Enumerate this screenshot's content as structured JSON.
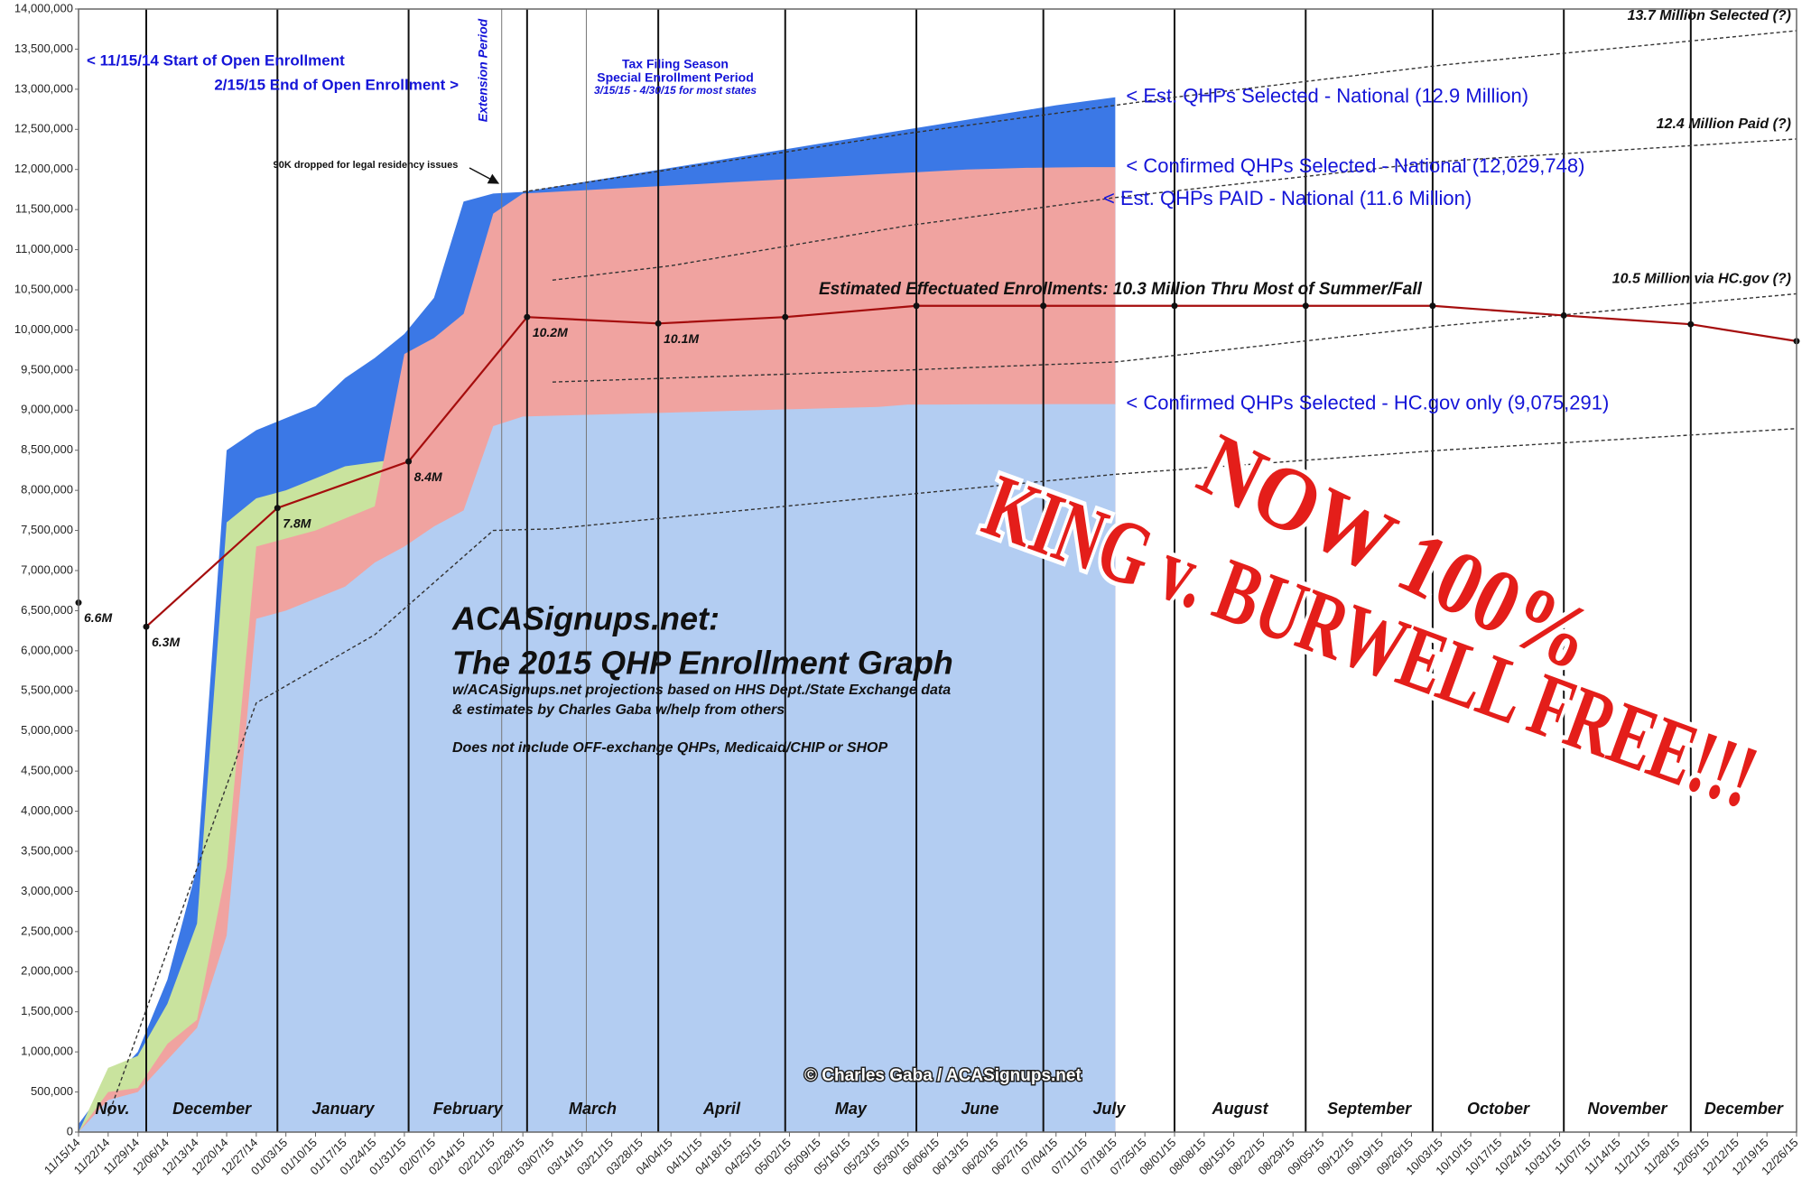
{
  "chart_data": {
    "type": "area",
    "stacked": false,
    "x": [
      "11/15/14",
      "11/22/14",
      "11/29/14",
      "12/06/14",
      "12/13/14",
      "12/20/14",
      "12/27/14",
      "01/03/15",
      "01/10/15",
      "01/17/15",
      "01/24/15",
      "01/31/15",
      "02/07/15",
      "02/14/15",
      "02/21/15",
      "02/28/15",
      "03/07/15",
      "03/14/15",
      "03/21/15",
      "03/28/15",
      "04/04/15",
      "04/11/15",
      "04/18/15",
      "04/25/15",
      "05/02/15",
      "05/09/15",
      "05/16/15",
      "05/23/15",
      "05/30/15",
      "06/06/15",
      "06/13/15",
      "06/20/15",
      "06/27/15",
      "07/04/15",
      "07/11/15",
      "07/18/15",
      "07/25/15",
      "08/01/15",
      "08/08/15",
      "08/15/15",
      "08/22/15",
      "08/29/15",
      "09/05/15",
      "09/12/15",
      "09/19/15",
      "09/26/15",
      "10/03/15",
      "10/10/15",
      "10/17/15",
      "10/24/15",
      "10/31/15",
      "11/07/15",
      "11/14/15",
      "11/21/15",
      "11/28/15",
      "12/05/15",
      "12/12/15",
      "12/19/15",
      "12/26/15"
    ],
    "xlim": [
      "11/15/14",
      "12/26/15"
    ],
    "ylim": [
      0,
      14000000
    ],
    "yticks": [
      0,
      {
        "value": 500000,
        "label": "500,000"
      },
      {
        "value": 1000000,
        "label": "1,000,000"
      },
      {
        "value": 1500000,
        "label": "1,500,000"
      },
      {
        "value": 2000000,
        "label": "2,000,000"
      },
      {
        "value": 2500000,
        "label": "2,500,000"
      },
      {
        "value": 3000000,
        "label": "3,000,000"
      },
      {
        "value": 3500000,
        "label": "3,500,000"
      },
      {
        "value": 4000000,
        "label": "4,000,000"
      },
      {
        "value": 4500000,
        "label": "4,500,000"
      },
      {
        "value": 5000000,
        "label": "5,000,000"
      },
      {
        "value": 5500000,
        "label": "5,500,000"
      },
      {
        "value": 6000000,
        "label": "6,000,000"
      },
      {
        "value": 6500000,
        "label": "6,500,000"
      },
      {
        "value": 7000000,
        "label": "7,000,000"
      },
      {
        "value": 7500000,
        "label": "7,500,000"
      },
      {
        "value": 8000000,
        "label": "8,000,000"
      },
      {
        "value": 8500000,
        "label": "8,500,000"
      },
      {
        "value": 9000000,
        "label": "9,000,000"
      },
      {
        "value": 9500000,
        "label": "9,500,000"
      },
      {
        "value": 10000000,
        "label": "10,000,000"
      },
      {
        "value": 10500000,
        "label": "10,500,000"
      },
      {
        "value": 11000000,
        "label": "11,000,000"
      },
      {
        "value": 11500000,
        "label": "11,500,000"
      },
      {
        "value": 12000000,
        "label": "12,000,000"
      },
      {
        "value": 12500000,
        "label": "12,500,000"
      },
      {
        "value": 13000000,
        "label": "13,000,000"
      },
      {
        "value": 13500000,
        "label": "13,500,000"
      },
      {
        "value": 14000000,
        "label": "14,000,000"
      }
    ],
    "grid": false,
    "month_lines": [
      "12/01/14",
      "01/01/15",
      "02/01/15",
      "03/01/15",
      "04/01/15",
      "05/01/15",
      "06/01/15",
      "07/01/15",
      "08/01/15",
      "09/01/15",
      "10/01/15",
      "11/01/15",
      "12/01/15"
    ],
    "event_lines": [
      "02/23/15",
      "03/15/15"
    ],
    "month_labels": [
      "Nov.",
      "December",
      "January",
      "February",
      "March",
      "April",
      "May",
      "June",
      "July",
      "August",
      "September",
      "October",
      "November",
      "December"
    ],
    "series": [
      {
        "name": "< Est. QHPs Selected - National (12.9 Million)",
        "style": "area",
        "color": "#3b78e6",
        "values": [
          100000,
          600000,
          1000000,
          1900000,
          3300000,
          8500000,
          8750000,
          8900000,
          9050000,
          9400000,
          9650000,
          9950000,
          10400000,
          11600000,
          11700000,
          11720000,
          11780000,
          11840000,
          11900000,
          11960000,
          12020000,
          12080000,
          12140000,
          12200000,
          12260000,
          12320000,
          12380000,
          12440000,
          12500000,
          12560000,
          12620000,
          12680000,
          12740000,
          12800000,
          12850000,
          12900000,
          null,
          null,
          null,
          null,
          null,
          null,
          null,
          null,
          null,
          null,
          null,
          null,
          null,
          null,
          null,
          null,
          null,
          null,
          null,
          null,
          null,
          null,
          null
        ]
      },
      {
        "style": "area",
        "color": "#c9e39e",
        "values": [
          0,
          800000,
          950000,
          1600000,
          2600000,
          7600000,
          7900000,
          8000000,
          8150000,
          8300000,
          8350000,
          8400000,
          null,
          null,
          null,
          null,
          null,
          null,
          null,
          null,
          null,
          null,
          null,
          null,
          null,
          null,
          null,
          null,
          null,
          null,
          null,
          null,
          null,
          null,
          null,
          null,
          null,
          null,
          null,
          null,
          null,
          null,
          null,
          null,
          null,
          null,
          null,
          null,
          null,
          null,
          null,
          null,
          null,
          null,
          null,
          null,
          null,
          null,
          null
        ]
      },
      {
        "name": "< Confirmed QHPs Selected - National (12,029,748)",
        "style": "area",
        "color": "#f0a3a0",
        "values": [
          0,
          500000,
          550000,
          1100000,
          1400000,
          3300000,
          7300000,
          7400000,
          7500000,
          7650000,
          7800000,
          9700000,
          9900000,
          10200000,
          11450000,
          11700000,
          11720000,
          11740000,
          11760000,
          11780000,
          11800000,
          11820000,
          11840000,
          11860000,
          11880000,
          11900000,
          11920000,
          11940000,
          11960000,
          11980000,
          12000000,
          12010000,
          12020000,
          12025000,
          12029000,
          12029748,
          null,
          null,
          null,
          null,
          null,
          null,
          null,
          null,
          null,
          null,
          null,
          null,
          null,
          null,
          null,
          null,
          null,
          null,
          null,
          null,
          null,
          null,
          null
        ]
      },
      {
        "name": "< Confirmed QHPs Selected - HC.gov only (9,075,291)",
        "style": "area",
        "color": "#b3cdf2",
        "values": [
          0,
          400000,
          500000,
          900000,
          1300000,
          2450000,
          6400000,
          6500000,
          6650000,
          6800000,
          7100000,
          7300000,
          7550000,
          7750000,
          8800000,
          8920000,
          8930000,
          8940000,
          8950000,
          8960000,
          8970000,
          8980000,
          8990000,
          9000000,
          9010000,
          9020000,
          9030000,
          9040000,
          9070000,
          9070000,
          9072000,
          9073000,
          9074000,
          9075000,
          9075000,
          9075291,
          null,
          null,
          null,
          null,
          null,
          null,
          null,
          null,
          null,
          null,
          null,
          null,
          null,
          null,
          null,
          null,
          null,
          null,
          null,
          null,
          null,
          null,
          null
        ]
      },
      {
        "name": "13.7 Million Selected (?)",
        "style": "dashed",
        "color": "#333333",
        "x": [
          "02/28/15",
          "04/04/15",
          "05/30/15",
          "08/01/15",
          "10/03/15",
          "12/26/15"
        ],
        "values": [
          11720000,
          12000000,
          12450000,
          12900000,
          13300000,
          13730000
        ]
      },
      {
        "name": "12.4 Million Paid (?)",
        "style": "dashed",
        "color": "#333333",
        "x": [
          "03/07/15",
          "04/04/15",
          "05/30/15",
          "07/18/15",
          "10/03/15",
          "12/26/15"
        ],
        "values": [
          10620000,
          10800000,
          11300000,
          11650000,
          12100000,
          12380000
        ]
      },
      {
        "name": "10.5 Million via HC.gov (?)",
        "style": "dashed",
        "color": "#333333",
        "x": [
          "03/07/15",
          "05/30/15",
          "07/18/15",
          "10/03/15",
          "12/26/15"
        ],
        "values": [
          9350000,
          9500000,
          9600000,
          10050000,
          10450000
        ]
      },
      {
        "style": "dashed",
        "color": "#333333",
        "x": [
          "11/22/14",
          "12/27/14",
          "01/24/15",
          "02/21/15",
          "03/07/15",
          "05/30/15",
          "07/18/15",
          "10/03/15",
          "12/26/15"
        ],
        "values": [
          200000,
          5350000,
          6200000,
          7500000,
          7520000,
          7950000,
          8200000,
          8500000,
          8770000
        ]
      },
      {
        "name": "Estimated Effectuated Enrollments: 10.3 Million Thru Most of Summer/Fall",
        "style": "line",
        "color": "#a50d0d",
        "x": [
          "12/01/14",
          "01/01/15",
          "02/01/15",
          "03/01/15",
          "04/01/15",
          "05/01/15",
          "06/01/15",
          "07/01/15",
          "08/01/15",
          "09/01/15",
          "10/01/15",
          "11/01/15",
          "12/01/15",
          "12/26/15"
        ],
        "values": [
          6300000,
          7780000,
          8360000,
          10160000,
          10080000,
          10160000,
          10300000,
          10300000,
          10300000,
          10300000,
          10300000,
          10180000,
          10070000,
          9860000
        ],
        "value_labels": [
          "6.3M",
          "7.8M",
          "8.4M",
          "10.2M",
          "10.1M",
          null,
          null,
          null,
          null,
          null,
          null,
          null,
          null,
          null
        ]
      },
      {
        "style": "points",
        "color": "#111111",
        "x": [
          "11/15/14"
        ],
        "values": [
          6600000
        ],
        "value_labels": [
          "6.6M"
        ]
      }
    ],
    "annotations": [
      "< 11/15/14 Start of Open Enrollment",
      "2/15/15 End of Open Enrollment >",
      "Extension Period",
      "Tax Filing Season",
      "Special Enrollment Period",
      "3/15/15 - 4/30/15 for most states",
      "90K dropped for legal residency issues",
      "< Est. QHPs PAID - National (11.6 Million)",
      "ACASignups.net:",
      "The 2015 QHP Enrollment Graph",
      "w/ACASignups.net projections based on HHS Dept./State Exchange data",
      "& estimates by Charles Gaba w/help from others",
      "Does not include OFF-exchange QHPs, Medicaid/CHIP or SHOP",
      "© Charles Gaba / ACASignups.net",
      "NOW 100%",
      "KING v. BURWELL FREE!!!"
    ]
  }
}
